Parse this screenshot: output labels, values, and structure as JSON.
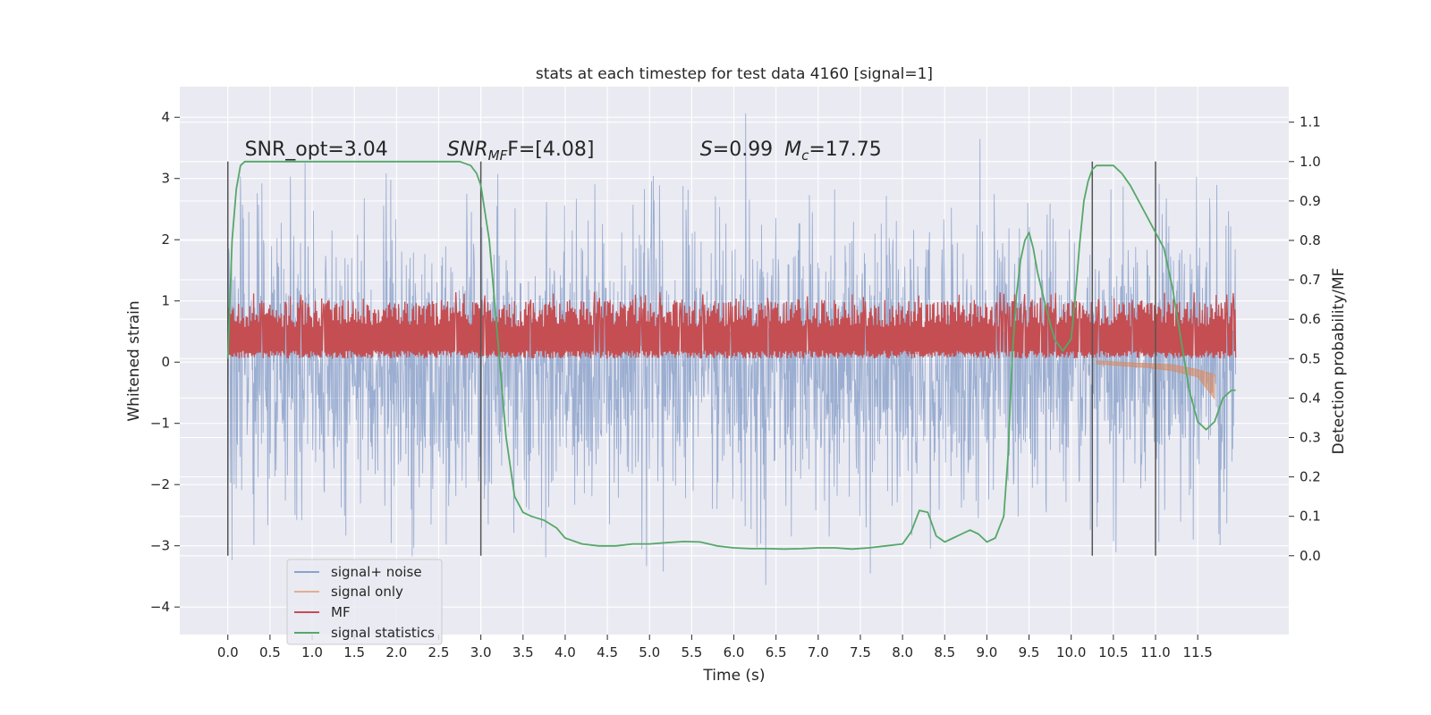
{
  "chart_data": {
    "type": "line",
    "title": "stats at each timestep for test data 4160 [signal=1]",
    "xlabel": "Time (s)",
    "ylabel_left": "Whitened strain",
    "ylabel_right": "Detection probability/MF",
    "xlim": [
      -0.57,
      12.58
    ],
    "ylim_left": [
      -4.45,
      4.5
    ],
    "ylim_right": [
      -0.2,
      1.19
    ],
    "x_ticks": [
      0.0,
      0.5,
      1.0,
      1.5,
      2.0,
      2.5,
      3.0,
      3.5,
      4.0,
      4.5,
      5.0,
      5.5,
      6.0,
      6.5,
      7.0,
      7.5,
      8.0,
      8.5,
      9.0,
      9.5,
      10.0,
      10.5,
      11.0,
      11.5
    ],
    "x_tick_labels": [
      "0.0",
      "0.5",
      "1.0",
      "1.5",
      "2.0",
      "2.5",
      "3.0",
      "3.5",
      "4.0",
      "4.5",
      "5.0",
      "5.5",
      "6.0",
      "6.5",
      "7.0",
      "7.5",
      "8.0",
      "8.5",
      "9.0",
      "9.5",
      "10.0",
      "10.5",
      "11.0",
      "11.5"
    ],
    "y_left_ticks": [
      -4,
      -3,
      -2,
      -1,
      0,
      1,
      2,
      3,
      4
    ],
    "y_left_tick_labels": [
      "−4",
      "−3",
      "−2",
      "−1",
      "0",
      "1",
      "2",
      "3",
      "4"
    ],
    "y_right_ticks": [
      0.0,
      0.1,
      0.2,
      0.3,
      0.4,
      0.5,
      0.6,
      0.7,
      0.8,
      0.9,
      1.0,
      1.1
    ],
    "y_right_tick_labels": [
      "0.0",
      "0.1",
      "0.2",
      "0.3",
      "0.4",
      "0.5",
      "0.6",
      "0.7",
      "0.8",
      "0.9",
      "1.0",
      "1.1"
    ],
    "grid": true,
    "legend_position": "lower-left",
    "series": [
      {
        "name": "signal+ noise",
        "color": "#4c72b0",
        "axis": "left",
        "x_range": [
          0.0,
          11.95
        ],
        "envelope_typical": [
          -2.0,
          2.0
        ],
        "envelope_peaks": [
          -4.05,
          4.1
        ]
      },
      {
        "name": "signal only",
        "color": "#dd8452",
        "axis": "left",
        "x": [
          10.3,
          10.6,
          10.9,
          11.2,
          11.5,
          11.7
        ],
        "y_upper": [
          0.02,
          0.0,
          -0.02,
          -0.04,
          -0.12,
          -0.2
        ],
        "y_lower": [
          -0.03,
          -0.06,
          -0.09,
          -0.14,
          -0.24,
          -0.6
        ]
      },
      {
        "name": "MF",
        "color": "#c44e52",
        "axis": "right",
        "x_range": [
          0.0,
          11.95
        ],
        "band": [
          0.5,
          0.62
        ],
        "peaks": [
          0.54,
          0.67
        ]
      },
      {
        "name": "signal statistics",
        "color": "#55a868",
        "axis": "right",
        "x": [
          0.0,
          0.05,
          0.1,
          0.15,
          0.2,
          0.3,
          0.5,
          1.0,
          1.5,
          2.0,
          2.5,
          2.75,
          2.88,
          2.95,
          3.0,
          3.1,
          3.2,
          3.3,
          3.4,
          3.5,
          3.6,
          3.75,
          3.9,
          4.0,
          4.2,
          4.4,
          4.6,
          4.8,
          5.0,
          5.2,
          5.4,
          5.6,
          5.8,
          6.0,
          6.2,
          6.4,
          6.6,
          6.8,
          7.0,
          7.2,
          7.4,
          7.6,
          7.8,
          8.0,
          8.1,
          8.2,
          8.3,
          8.4,
          8.5,
          8.6,
          8.7,
          8.8,
          8.9,
          9.0,
          9.1,
          9.2,
          9.25,
          9.3,
          9.35,
          9.4,
          9.45,
          9.5,
          9.55,
          9.6,
          9.7,
          9.8,
          9.9,
          10.0,
          10.05,
          10.1,
          10.15,
          10.2,
          10.25,
          10.3,
          10.4,
          10.5,
          10.6,
          10.7,
          10.8,
          10.9,
          11.0,
          11.1,
          11.2,
          11.3,
          11.4,
          11.5,
          11.6,
          11.7,
          11.8,
          11.9,
          11.95
        ],
        "y": [
          0.5,
          0.8,
          0.93,
          0.99,
          1.0,
          1.0,
          1.0,
          1.0,
          1.0,
          1.0,
          1.0,
          1.0,
          0.99,
          0.97,
          0.94,
          0.8,
          0.55,
          0.3,
          0.15,
          0.11,
          0.1,
          0.09,
          0.07,
          0.045,
          0.03,
          0.025,
          0.025,
          0.03,
          0.03,
          0.033,
          0.036,
          0.035,
          0.025,
          0.02,
          0.018,
          0.018,
          0.017,
          0.018,
          0.02,
          0.02,
          0.017,
          0.02,
          0.025,
          0.03,
          0.06,
          0.115,
          0.11,
          0.05,
          0.035,
          0.045,
          0.055,
          0.065,
          0.055,
          0.035,
          0.045,
          0.1,
          0.25,
          0.5,
          0.66,
          0.75,
          0.8,
          0.82,
          0.78,
          0.72,
          0.63,
          0.55,
          0.52,
          0.55,
          0.66,
          0.79,
          0.9,
          0.95,
          0.98,
          0.99,
          0.99,
          0.99,
          0.97,
          0.94,
          0.9,
          0.86,
          0.82,
          0.78,
          0.68,
          0.55,
          0.42,
          0.34,
          0.32,
          0.34,
          0.4,
          0.42,
          0.42
        ]
      }
    ],
    "vertical_lines_x": [
      0.0,
      3.0,
      10.25,
      11.0
    ],
    "vertical_lines_ylim_right": [
      0.0,
      1.0
    ],
    "annotations": [
      {
        "text": "SNR_opt=3.04",
        "x": 0.2,
        "y_right": 1.015
      },
      {
        "text": "SNR",
        "sub": "MF",
        "rest": "F=[4.08]",
        "x": 2.6,
        "y_right": 1.015
      },
      {
        "text": "S",
        "rest": "=0.99",
        "x": 5.6,
        "y_right": 1.015
      },
      {
        "text": "M",
        "sub": "c",
        "rest": "=17.75",
        "x": 6.6,
        "y_right": 1.015
      }
    ],
    "colors": {
      "axes_background": "#eaeaf2",
      "grid": "#ffffff",
      "signal_noise": "#4c72b0",
      "signal_only": "#dd8452",
      "mf": "#c44e52",
      "signal_statistics": "#55a868",
      "vline": "#555555"
    }
  }
}
